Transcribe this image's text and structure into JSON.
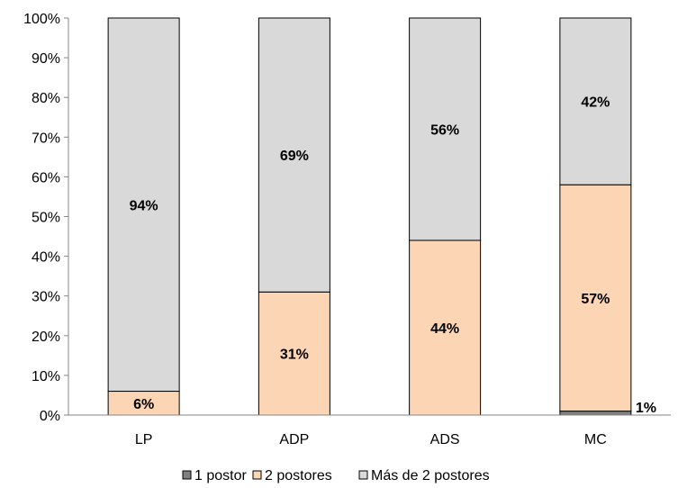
{
  "chart_data": {
    "type": "bar",
    "stacked": true,
    "categories": [
      "LP",
      "ADP",
      "ADS",
      "MC"
    ],
    "series": [
      {
        "name": "1 postor",
        "values": [
          0,
          0,
          0,
          1
        ],
        "labels": [
          "",
          "",
          "",
          "1%"
        ],
        "color": "#808080"
      },
      {
        "name": "2 postores",
        "values": [
          6,
          31,
          44,
          57
        ],
        "labels": [
          "6%",
          "31%",
          "44%",
          "57%"
        ],
        "color": "#fcd5b5"
      },
      {
        "name": "Más de 2 postores",
        "values": [
          94,
          69,
          56,
          42
        ],
        "labels": [
          "94%",
          "69%",
          "56%",
          "42%"
        ],
        "color": "#d9d9d9"
      }
    ],
    "y_ticks": [
      "0%",
      "10%",
      "20%",
      "30%",
      "40%",
      "50%",
      "60%",
      "70%",
      "80%",
      "90%",
      "100%"
    ],
    "ylim": [
      0,
      100
    ],
    "grid": false,
    "legend_position": "bottom"
  }
}
